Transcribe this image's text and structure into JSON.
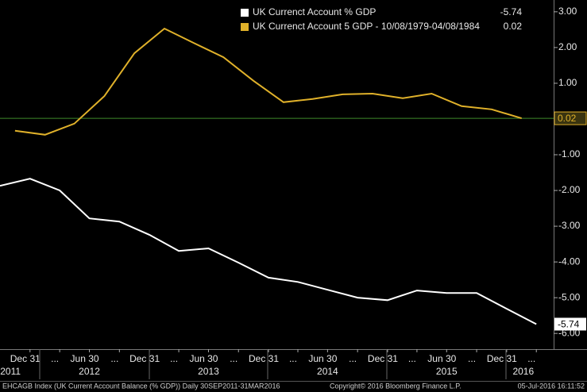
{
  "chart_data": {
    "type": "line",
    "series": [
      {
        "name": "UK Currenct Account % GDP",
        "color": "#ffffff",
        "x": [
          "2011-09-30",
          "2011-12-31",
          "2012-03-31",
          "2012-06-30",
          "2012-09-30",
          "2012-12-31",
          "2013-03-31",
          "2013-06-30",
          "2013-09-30",
          "2013-12-31",
          "2014-03-31",
          "2014-06-30",
          "2014-09-30",
          "2014-12-31",
          "2015-03-31",
          "2015-06-30",
          "2015-09-30",
          "2015-12-31",
          "2016-03-31"
        ],
        "values": [
          -1.87,
          -1.67,
          -2.0,
          -2.78,
          -2.87,
          -3.24,
          -3.69,
          -3.62,
          -4.02,
          -4.44,
          -4.56,
          -4.78,
          -5.0,
          -5.07,
          -4.8,
          -4.87,
          -4.87,
          -5.31,
          -5.74
        ]
      },
      {
        "name": "UK Currenct Account 5 GDP - 10/08/1979-04/08/1984",
        "color": "#e0b12a",
        "x": [
          "2011-11-15",
          "2012-02-15",
          "2012-05-15",
          "2012-08-15",
          "2012-11-15",
          "2013-02-15",
          "2013-05-15",
          "2013-08-15",
          "2013-11-15",
          "2014-02-15",
          "2014-05-15",
          "2014-08-15",
          "2014-11-15",
          "2015-02-15",
          "2015-05-15",
          "2015-08-15",
          "2015-11-15",
          "2016-02-15"
        ],
        "values": [
          -0.33,
          -0.44,
          -0.13,
          0.64,
          1.84,
          2.53,
          2.13,
          1.73,
          1.07,
          0.47,
          0.56,
          0.69,
          0.71,
          0.58,
          0.71,
          0.36,
          0.27,
          0.02
        ]
      }
    ],
    "xlim": [
      "2011-09-30",
      "2016-05-23"
    ],
    "xticks": [
      {
        "value": "2011-12-31",
        "label": "Dec 31"
      },
      {
        "value": "2012-03-31",
        "label": "..."
      },
      {
        "value": "2012-06-30",
        "label": "Jun 30"
      },
      {
        "value": "2012-09-30",
        "label": "..."
      },
      {
        "value": "2012-12-31",
        "label": "Dec 31"
      },
      {
        "value": "2013-03-31",
        "label": "..."
      },
      {
        "value": "2013-06-30",
        "label": "Jun 30"
      },
      {
        "value": "2013-09-30",
        "label": "..."
      },
      {
        "value": "2013-12-31",
        "label": "Dec 31"
      },
      {
        "value": "2014-03-31",
        "label": "..."
      },
      {
        "value": "2014-06-30",
        "label": "Jun 30"
      },
      {
        "value": "2014-09-30",
        "label": "..."
      },
      {
        "value": "2014-12-31",
        "label": "Dec 31"
      },
      {
        "value": "2015-03-31",
        "label": "..."
      },
      {
        "value": "2015-06-30",
        "label": "Jun 30"
      },
      {
        "value": "2015-09-30",
        "label": "..."
      },
      {
        "value": "2015-12-31",
        "label": "Dec 31"
      },
      {
        "value": "2016-03-31",
        "label": "..."
      }
    ],
    "year_labels": [
      {
        "value": "2011-11-01",
        "label": "2011"
      },
      {
        "value": "2012-06-30",
        "label": "2012"
      },
      {
        "value": "2013-06-30",
        "label": "2013"
      },
      {
        "value": "2014-06-30",
        "label": "2014"
      },
      {
        "value": "2015-06-30",
        "label": "2015"
      },
      {
        "value": "2016-02-20",
        "label": "2016"
      }
    ],
    "ylim": [
      -6.44,
      3.33
    ],
    "yticks": [
      {
        "value": 3,
        "label": "3.00"
      },
      {
        "value": 2,
        "label": "2.00"
      },
      {
        "value": 1,
        "label": "1.00"
      },
      {
        "value": -1,
        "label": "-1.00"
      },
      {
        "value": -2,
        "label": "-2.00"
      },
      {
        "value": -3,
        "label": "-3.00"
      },
      {
        "value": -4,
        "label": "-4.00"
      },
      {
        "value": -5,
        "label": "-5.00"
      },
      {
        "value": -6,
        "label": "-6.00"
      }
    ],
    "footer": {
      "source": "EHCAGB Index (UK Current Account Balance (% GDP)) Daily 30SEP2011-31MAR2016",
      "copyright": "Copyright© 2016 Bloomberg Finance L.P.",
      "timestamp": "05-Jul-2016 16:11:52"
    }
  }
}
